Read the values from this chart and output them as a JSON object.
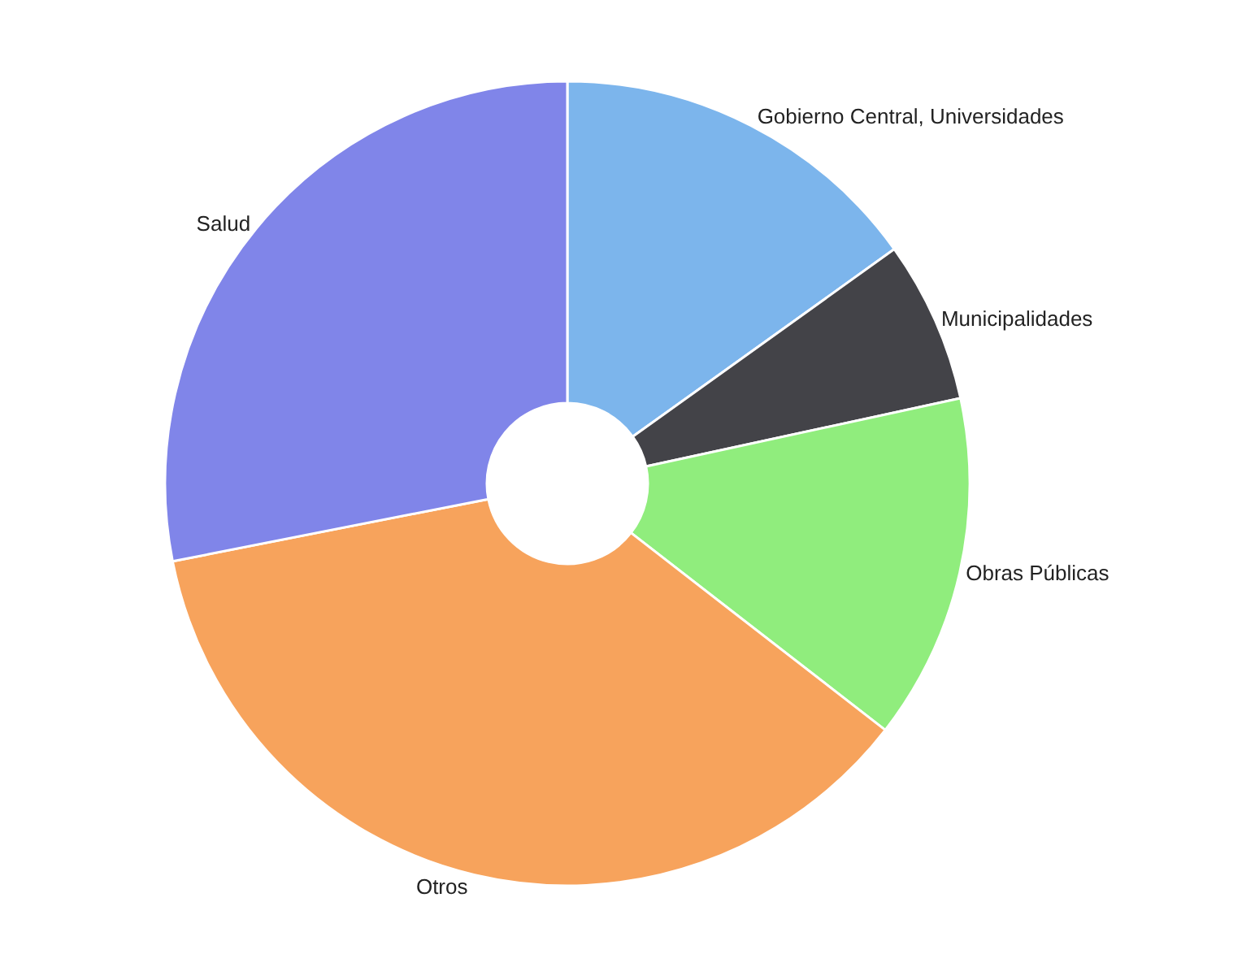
{
  "chart_data": {
    "type": "donut",
    "categories": [
      "Gobierno Central, Universidades",
      "Municipalidades",
      "Obras Públicas",
      "Otros",
      "Salud"
    ],
    "values": [
      15.1,
      6.5,
      13.9,
      36.4,
      28.1
    ],
    "colors": [
      "#7cb5ec",
      "#434348",
      "#90ed7d",
      "#f7a35c",
      "#8085e9"
    ],
    "legend": false
  }
}
